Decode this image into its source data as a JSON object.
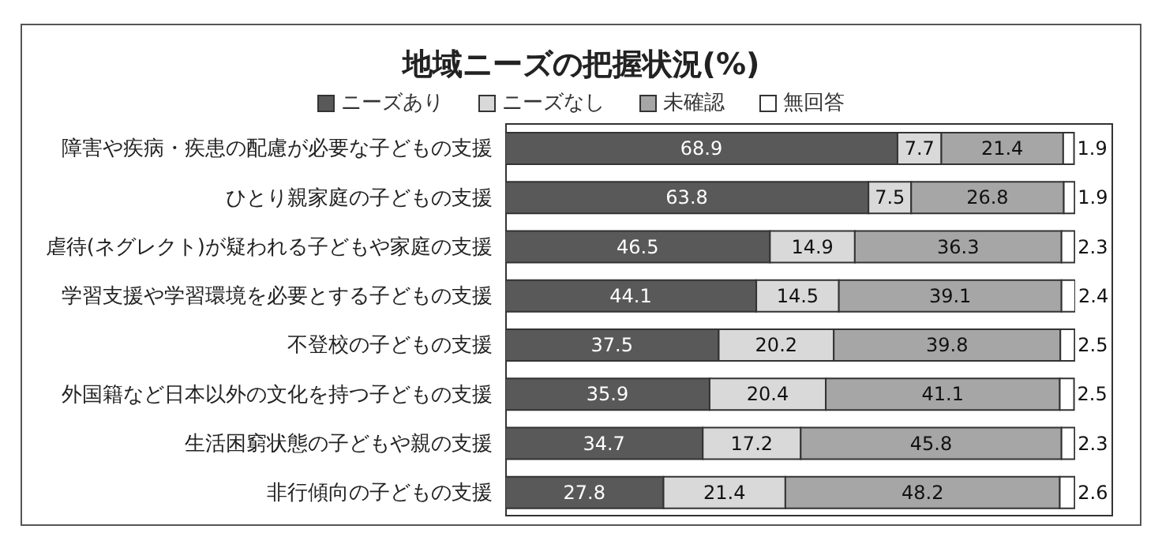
{
  "chart_data": {
    "type": "bar",
    "orientation": "horizontal",
    "stacked": true,
    "title": "地域ニーズの把握状況(%)",
    "legend": "top",
    "data_labels": true,
    "categories": [
      "障害や疾病・疾患の配慮が必要な子どもの支援",
      "ひとり親家庭の子どもの支援",
      "虐待(ネグレクト)が疑われる子どもや家庭の支援",
      "学習支援や学習環境を必要とする子どもの支援",
      "不登校の子どもの支援",
      "外国籍など日本以外の文化を持つ子どもの支援",
      "生活困窮状態の子どもや親の支援",
      "非行傾向の子どもの支援"
    ],
    "series": [
      {
        "name": "ニーズあり",
        "color": "#595959",
        "values": [
          68.9,
          63.8,
          46.5,
          44.1,
          37.5,
          35.9,
          34.7,
          27.8
        ]
      },
      {
        "name": "ニーズなし",
        "color": "#d9d9d9",
        "values": [
          7.7,
          7.5,
          14.9,
          14.5,
          20.2,
          20.4,
          17.2,
          21.4
        ]
      },
      {
        "name": "未確認",
        "color": "#a6a6a6",
        "values": [
          21.4,
          26.8,
          36.3,
          39.1,
          39.8,
          41.1,
          45.8,
          48.2
        ]
      },
      {
        "name": "無回答",
        "color": "#ffffff",
        "values": [
          1.9,
          1.9,
          2.3,
          2.4,
          2.5,
          2.5,
          2.3,
          2.6
        ]
      }
    ]
  }
}
